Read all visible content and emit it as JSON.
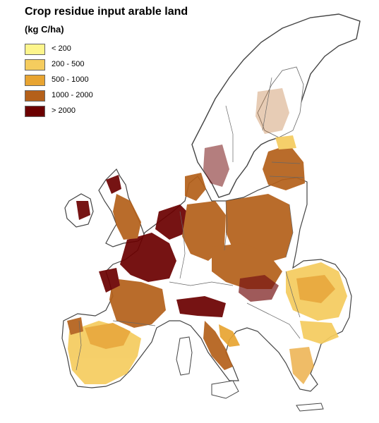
{
  "title": "Crop residue input arable land",
  "unit": "(kg C/ha)",
  "legend": {
    "items": [
      {
        "label": "< 200",
        "color": "#fdf58c"
      },
      {
        "label": "200 - 500",
        "color": "#f5cc5e"
      },
      {
        "label": "500 - 1000",
        "color": "#e8a431"
      },
      {
        "label": "1000 - 2000",
        "color": "#b4601a"
      },
      {
        "label": "> 2000",
        "color": "#6b0000"
      }
    ]
  },
  "colors": {
    "border": "#444444",
    "coast": "#555555",
    "background": "#ffffff"
  }
}
